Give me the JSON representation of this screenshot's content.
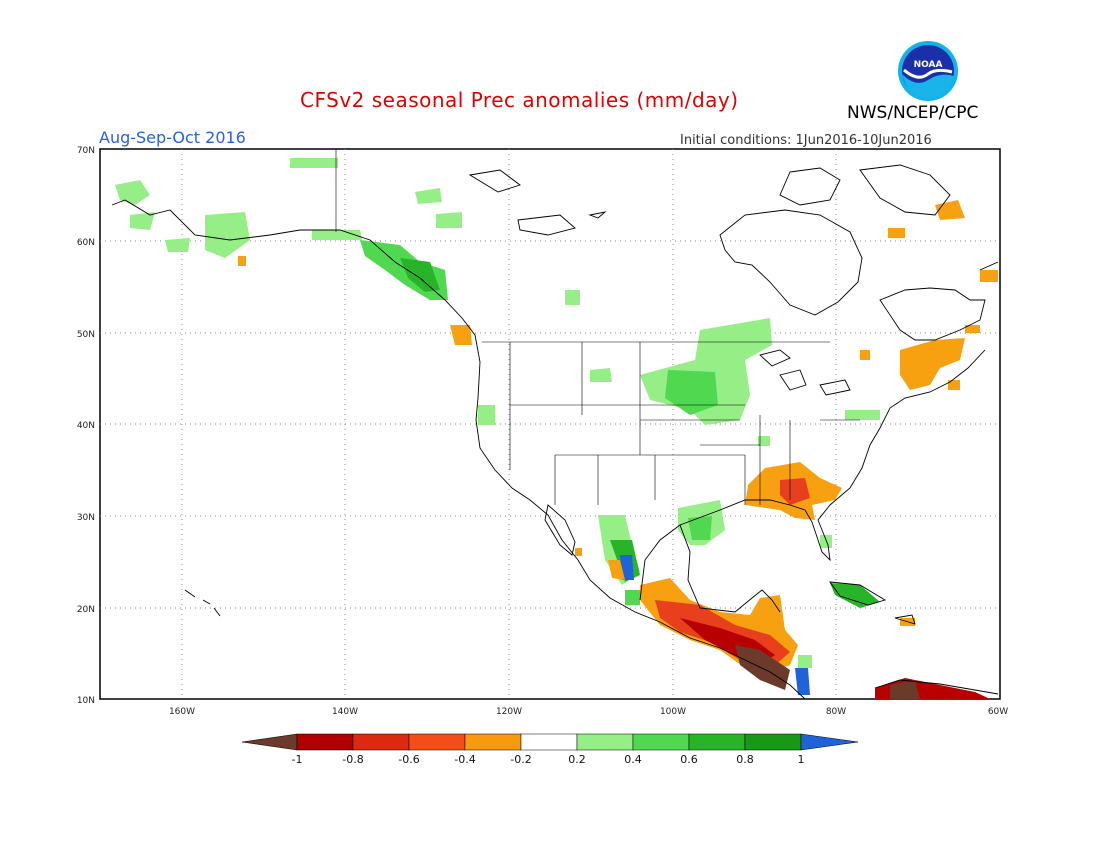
{
  "header": {
    "title": "CFSv2 seasonal Prec anomalies (mm/day)",
    "period": "Aug-Sep-Oct 2016",
    "initial_conditions": "Initial conditions: 1Jun2016-10Jun2016",
    "agency": "NWS/NCEP/CPC",
    "logo_text": "NOAA"
  },
  "map": {
    "lat_labels": [
      "70N",
      "60N",
      "50N",
      "40N",
      "30N",
      "20N",
      "10N"
    ],
    "lon_labels": [
      "160W",
      "140W",
      "120W",
      "100W",
      "80W",
      "60W"
    ],
    "lat_range": [
      10,
      70
    ],
    "lon_range": [
      -170,
      -60
    ],
    "grid": "dotted",
    "background": "#ffffff"
  },
  "colorbar": {
    "labels": [
      "-1",
      "-0.8",
      "-0.6",
      "-0.4",
      "-0.2",
      "0.2",
      "0.4",
      "0.6",
      "0.8",
      "1"
    ],
    "colors": [
      "#6b3a2a",
      "#b00000",
      "#dc2a10",
      "#f44e18",
      "#f79a10",
      "#ffffff",
      "#96ee86",
      "#50d850",
      "#28b428",
      "#189818",
      "#1e64d8"
    ]
  },
  "legend_colors": {
    "dry_strong": "#6b3a2a",
    "dry_high": "#b80000",
    "dry_mid": "#e8401c",
    "dry_low": "#f7a010",
    "wet_low": "#96ee86",
    "wet_mid": "#50d850",
    "wet_high": "#28b428",
    "wet_strong": "#1e64d8"
  }
}
